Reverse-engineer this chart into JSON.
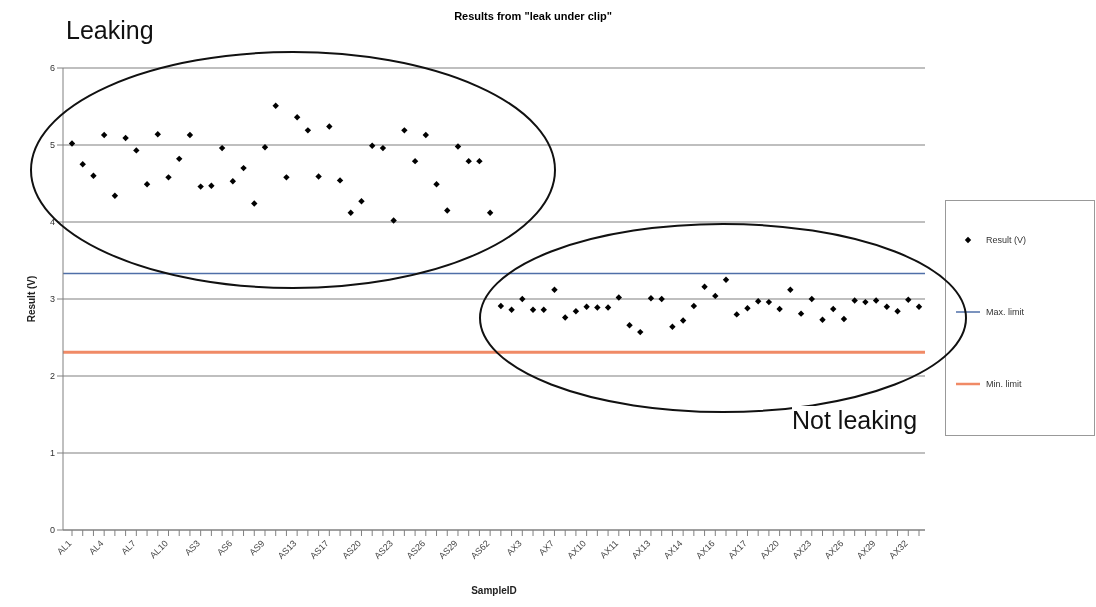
{
  "chart_data": {
    "type": "scatter",
    "title": "Results from \"leak under clip\"",
    "xlabel": "SampleID",
    "ylabel": "Result (V)",
    "annotations": [
      "Leaking",
      "Not leaking"
    ],
    "categories": [
      "AL1",
      null,
      null,
      "AL4",
      null,
      null,
      "AL7",
      null,
      null,
      "AL10",
      null,
      null,
      "AS3",
      null,
      null,
      "AS6",
      null,
      null,
      "AS9",
      null,
      null,
      "AS13",
      null,
      null,
      "AS17",
      null,
      null,
      "AS20",
      null,
      null,
      "AS23",
      null,
      null,
      "AS26",
      null,
      null,
      "AS29",
      null,
      null,
      "AS62",
      null,
      null,
      "AX3",
      null,
      null,
      "AX7",
      null,
      null,
      "AX10",
      null,
      null,
      "AX11",
      null,
      null,
      "AX13",
      null,
      null,
      "AX14",
      null,
      null,
      "AX16",
      null,
      null,
      "AX17",
      null,
      null,
      "AX20",
      null,
      null,
      "AX23",
      null,
      null,
      "AX26",
      null,
      null,
      "AX29",
      null,
      null,
      "AX32",
      null
    ],
    "series": [
      {
        "name": "Result (V)",
        "color": "#000000",
        "values": [
          5.02,
          4.75,
          4.6,
          5.13,
          4.34,
          5.09,
          4.93,
          4.49,
          5.14,
          4.58,
          4.82,
          5.13,
          4.46,
          4.47,
          4.96,
          4.53,
          4.7,
          4.24,
          4.97,
          5.51,
          4.58,
          5.36,
          5.19,
          4.59,
          5.24,
          4.54,
          4.12,
          4.27,
          4.99,
          4.96,
          4.02,
          5.19,
          4.79,
          5.13,
          4.49,
          4.15,
          4.98,
          4.79,
          4.79,
          4.12,
          2.91,
          2.86,
          3.0,
          2.86,
          2.86,
          3.12,
          2.76,
          2.84,
          2.9,
          2.89,
          2.89,
          3.02,
          2.66,
          2.57,
          3.01,
          3.0,
          2.64,
          2.72,
          2.91,
          3.16,
          3.04,
          3.25,
          2.8,
          2.88,
          2.97,
          2.96,
          2.87,
          3.12,
          2.81,
          3.0,
          2.73,
          2.87,
          2.74,
          2.98,
          2.96,
          2.98,
          2.9,
          2.84,
          2.99,
          2.9
        ]
      }
    ],
    "ref_lines": [
      {
        "axis": "y",
        "value": 3.33,
        "label": "Max. limit",
        "color": "#4f6fa8"
      },
      {
        "axis": "y",
        "value": 2.31,
        "label": "Min. limit",
        "color": "#f08a66"
      }
    ],
    "ylim": [
      0,
      6
    ],
    "yticks": [
      0,
      1,
      2,
      3,
      4,
      5,
      6
    ],
    "grid": "y",
    "legend": "right",
    "marker": "diamond"
  }
}
